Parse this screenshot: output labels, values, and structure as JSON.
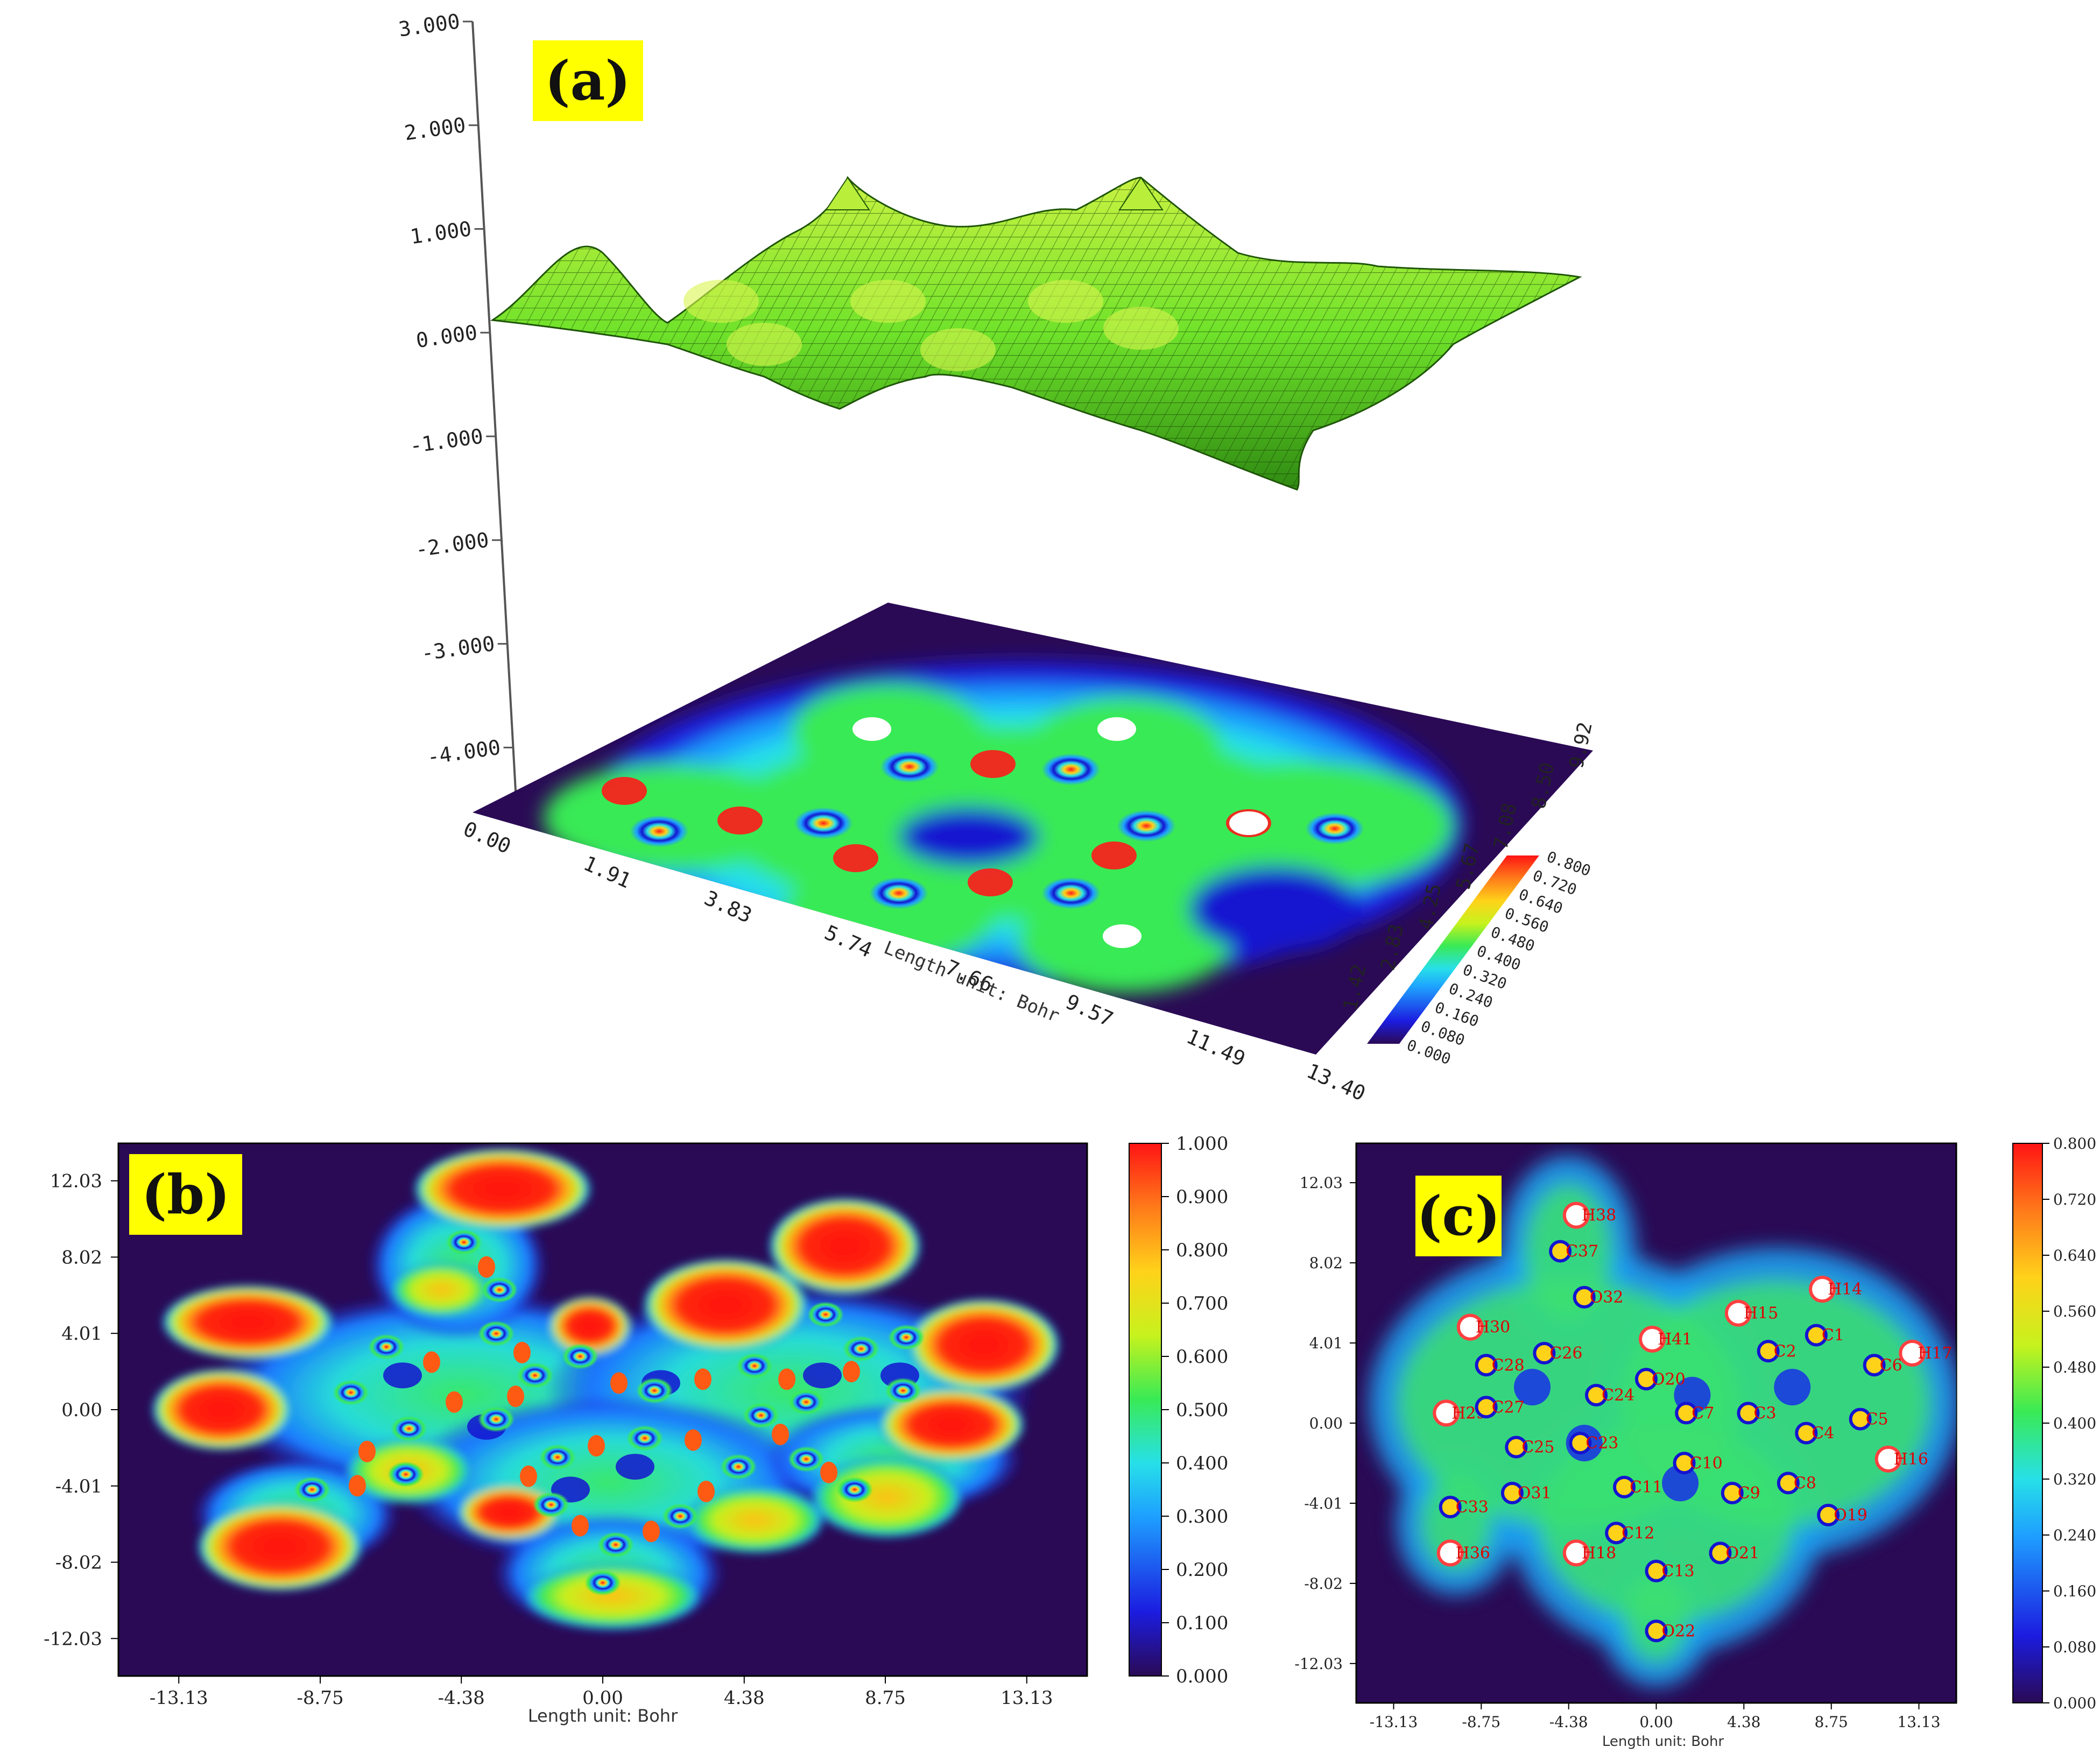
{
  "chart_data": [
    {
      "panel": "(a)",
      "type": "heatmap",
      "subtype": "3d-relief-surface-with-projected-color-map",
      "z_axis_ticks": [
        "3.000",
        "2.000",
        "1.000",
        "0.000",
        "-1.000",
        "-2.000",
        "-3.000",
        "-4.000"
      ],
      "z_range": [
        -4.0,
        3.0
      ],
      "x_axis_ticks": [
        "0.00",
        "1.91",
        "3.83",
        "5.74",
        "7.66",
        "9.57",
        "11.49",
        "13.40"
      ],
      "x_range": [
        0.0,
        13.4
      ],
      "y_axis_ticks": [
        "1.42",
        "2.83",
        "4.25",
        "5.67",
        "7.08",
        "8.50",
        "9.92"
      ],
      "y_range": [
        1.42,
        9.92
      ],
      "xlabel": "Length unit: Bohr",
      "colorbar_ticks": [
        "0.800",
        "0.720",
        "0.640",
        "0.560",
        "0.480",
        "0.400",
        "0.320",
        "0.240",
        "0.160",
        "0.080",
        "0.000"
      ],
      "colorbar_range": [
        0.0,
        0.8
      ],
      "surface_color": "#6fe22a",
      "label_bg": "#ffff00"
    },
    {
      "panel": "(b)",
      "type": "heatmap",
      "x_ticks": [
        "-13.13",
        "-8.75",
        "-4.38",
        "0.00",
        "4.38",
        "8.75",
        "13.13"
      ],
      "x_range": [
        -15.0,
        15.0
      ],
      "y_ticks": [
        "12.03",
        "8.02",
        "4.01",
        "0.00",
        "-4.01",
        "-8.02",
        "-12.03"
      ],
      "y_range": [
        -14.0,
        14.0
      ],
      "xlabel": "Length unit: Bohr",
      "colorbar_ticks": [
        "1.000",
        "0.900",
        "0.800",
        "0.700",
        "0.600",
        "0.500",
        "0.400",
        "0.300",
        "0.200",
        "0.100",
        "0.000"
      ],
      "colorbar_range": [
        0.0,
        1.0
      ],
      "label_bg": "#ffff00"
    },
    {
      "panel": "(c)",
      "type": "heatmap",
      "x_ticks": [
        "-13.13",
        "-8.75",
        "-4.38",
        "0.00",
        "4.38",
        "8.75",
        "13.13"
      ],
      "x_range": [
        -15.0,
        15.0
      ],
      "y_ticks": [
        "12.03",
        "8.02",
        "4.01",
        "0.00",
        "-4.01",
        "-8.02",
        "-12.03"
      ],
      "y_range": [
        -14.0,
        14.0
      ],
      "xlabel": "Length unit: Bohr",
      "colorbar_ticks": [
        "0.800",
        "0.720",
        "0.640",
        "0.560",
        "0.480",
        "0.400",
        "0.320",
        "0.240",
        "0.160",
        "0.080",
        "0.000"
      ],
      "colorbar_range": [
        0.0,
        0.8
      ],
      "label_bg": "#ffff00",
      "atom_labels": [
        {
          "label": "H38",
          "x": -4.0,
          "y": 10.4
        },
        {
          "label": "C37",
          "x": -4.8,
          "y": 8.6
        },
        {
          "label": "O32",
          "x": -3.6,
          "y": 6.3
        },
        {
          "label": "H30",
          "x": -9.3,
          "y": 4.8
        },
        {
          "label": "C28",
          "x": -8.5,
          "y": 2.9
        },
        {
          "label": "C26",
          "x": -5.6,
          "y": 3.5
        },
        {
          "label": "H41",
          "x": -0.2,
          "y": 4.2
        },
        {
          "label": "O20",
          "x": -0.5,
          "y": 2.2
        },
        {
          "label": "C24",
          "x": -3.0,
          "y": 1.4
        },
        {
          "label": "H29",
          "x": -10.5,
          "y": 0.5
        },
        {
          "label": "C27",
          "x": -8.5,
          "y": 0.8
        },
        {
          "label": "C25",
          "x": -7.0,
          "y": -1.2
        },
        {
          "label": "C23",
          "x": -3.8,
          "y": -1.0
        },
        {
          "label": "C7",
          "x": 1.5,
          "y": 0.5
        },
        {
          "label": "C10",
          "x": 1.4,
          "y": -2.0
        },
        {
          "label": "C11",
          "x": -1.6,
          "y": -3.2
        },
        {
          "label": "O31",
          "x": -7.2,
          "y": -3.5
        },
        {
          "label": "C33",
          "x": -10.3,
          "y": -4.2
        },
        {
          "label": "H36",
          "x": -10.3,
          "y": -6.5
        },
        {
          "label": "C12",
          "x": -2.0,
          "y": -5.5
        },
        {
          "label": "H18",
          "x": -4.0,
          "y": -6.5
        },
        {
          "label": "C13",
          "x": 0.0,
          "y": -7.4
        },
        {
          "label": "O22",
          "x": 0.0,
          "y": -10.4
        },
        {
          "label": "O21",
          "x": 3.2,
          "y": -6.5
        },
        {
          "label": "C9",
          "x": 3.8,
          "y": -3.5
        },
        {
          "label": "C8",
          "x": 6.6,
          "y": -3.0
        },
        {
          "label": "O19",
          "x": 8.6,
          "y": -4.6
        },
        {
          "label": "C3",
          "x": 4.6,
          "y": 0.5
        },
        {
          "label": "C4",
          "x": 7.5,
          "y": -0.5
        },
        {
          "label": "C5",
          "x": 10.2,
          "y": 0.2
        },
        {
          "label": "H16",
          "x": 11.6,
          "y": -1.8
        },
        {
          "label": "C6",
          "x": 10.9,
          "y": 2.9
        },
        {
          "label": "H17",
          "x": 12.8,
          "y": 3.5
        },
        {
          "label": "C1",
          "x": 8.0,
          "y": 4.4
        },
        {
          "label": "C2",
          "x": 5.6,
          "y": 3.6
        },
        {
          "label": "H15",
          "x": 4.1,
          "y": 5.5
        },
        {
          "label": "H14",
          "x": 8.3,
          "y": 6.7
        }
      ]
    }
  ]
}
